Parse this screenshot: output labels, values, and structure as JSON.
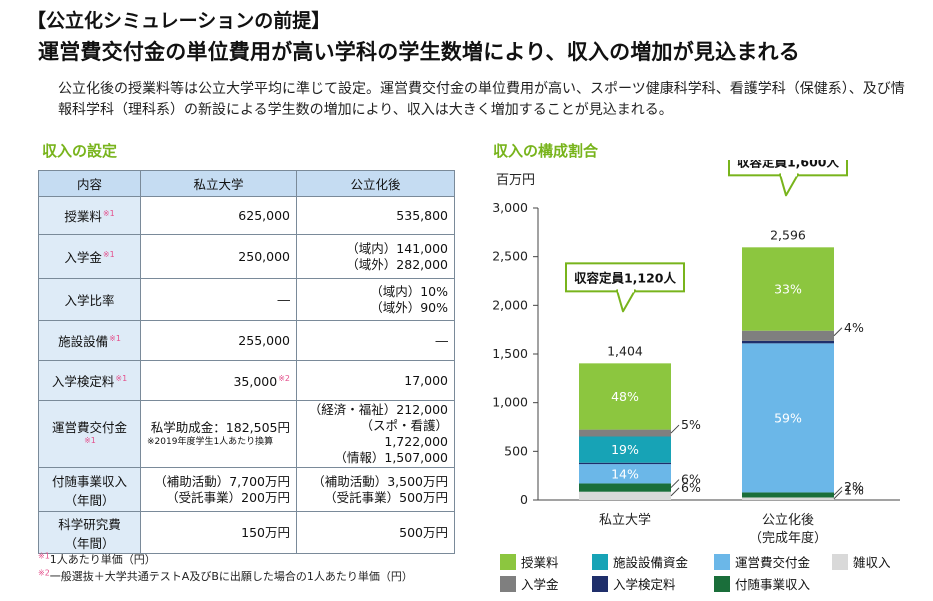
{
  "heading": {
    "line1": "【公立化シミュレーションの前提】",
    "line2": "運営費交付金の単位費用が高い学科の学生数増により、収入の増加が見込まれる"
  },
  "intro": "公立化後の授業料等は公立大学平均に準じて設定。運営費交付金の単位費用が高い、スポーツ健康科学科、看護学科（保健系）、及び情報科学科（理科系）の新設による学生数の増加により、収入は大きく増加することが見込まれる。",
  "table_section_title": "収入の設定",
  "chart_section_title": "収入の構成割合",
  "table": {
    "headers": [
      "内容",
      "私立大学",
      "公立化後"
    ],
    "rows": [
      {
        "label": "授業料",
        "mark": "※1",
        "private": "625,000",
        "public": "535,800"
      },
      {
        "label": "入学金",
        "mark": "※1",
        "private": "250,000",
        "public_1": "（域内）141,000",
        "public_2": "（域外）282,000"
      },
      {
        "label": "入学比率",
        "private": "―",
        "public_1": "（域内）10%",
        "public_2": "（域外）90%"
      },
      {
        "label": "施設設備",
        "mark": "※1",
        "private": "255,000",
        "public": "―"
      },
      {
        "label": "入学検定料",
        "mark": "※1",
        "private": "35,000",
        "private_mark": "※2",
        "public": "17,000"
      },
      {
        "label": "運営費交付金",
        "mark": "※1",
        "private": "私学助成金：182,505円",
        "private_note": "※2019年度学生1人あたり換算",
        "public_1": "（経済・福祉）212,000",
        "public_2": "（スポ・看護）1,722,000",
        "public_3": "（情報）1,507,000"
      },
      {
        "label_1": "付随事業収入",
        "label_2": "（年間）",
        "private_1": "（補助活動）7,700万円",
        "private_2": "（受託事業）200万円",
        "public_1": "（補助活動）3,500万円",
        "public_2": "（受託事業）500万円"
      },
      {
        "label_1": "科学研究費",
        "label_2": "（年間）",
        "private": "150万円",
        "public": "500万円"
      }
    ]
  },
  "footnotes": [
    {
      "mark": "※1",
      "text": "1人あたり単価（円）"
    },
    {
      "mark": "※2",
      "text": "一般選抜＋大学共通テストA及びBに出願した場合の1人あたり単価（円）"
    }
  ],
  "chart_data": {
    "type": "bar",
    "stacked": true,
    "ylabel": "百万円",
    "ylim": [
      0,
      3000
    ],
    "yticks": [
      "0",
      "500",
      "1,000",
      "1,500",
      "2,000",
      "2,500",
      "3,000"
    ],
    "grid": false,
    "legend_position": "bottom",
    "categories": [
      {
        "label": "私立大学",
        "sublabel": "",
        "total": 1404,
        "total_label": "1,404",
        "capacity_label": "収容定員1,120人"
      },
      {
        "label": "公立化後",
        "sublabel": "（完成年度）",
        "total": 2596,
        "total_label": "2,596",
        "capacity_label": "収容定員1,600人"
      }
    ],
    "series": [
      {
        "name": "雑収入",
        "color": "#d9d9d9",
        "percent": [
          6,
          1
        ],
        "labels": [
          "6%",
          "1%"
        ]
      },
      {
        "name": "付随事業収入",
        "color": "#1a6e3a",
        "percent": [
          6,
          2
        ],
        "labels": [
          "6%",
          "2%"
        ]
      },
      {
        "name": "運営費交付金",
        "color": "#6bb7e8",
        "percent": [
          14,
          59
        ],
        "labels": [
          "14%",
          "59%"
        ]
      },
      {
        "name": "入学検定料",
        "color": "#1f2f6b",
        "percent": [
          1,
          1
        ],
        "labels": [
          "",
          ""
        ]
      },
      {
        "name": "施設設備資金",
        "color": "#17a3b6",
        "percent": [
          19,
          0
        ],
        "labels": [
          "19%",
          ""
        ]
      },
      {
        "name": "入学金",
        "color": "#7f7f7f",
        "percent": [
          5,
          4
        ],
        "labels": [
          "5%",
          "4%"
        ]
      },
      {
        "name": "授業料",
        "color": "#8cc63f",
        "percent": [
          48,
          33
        ],
        "labels": [
          "48%",
          "33%"
        ]
      }
    ],
    "legend_order": [
      "授業料",
      "施設設備資金",
      "運営費交付金",
      "雑収入",
      "入学金",
      "入学検定料",
      "付随事業収入"
    ]
  }
}
